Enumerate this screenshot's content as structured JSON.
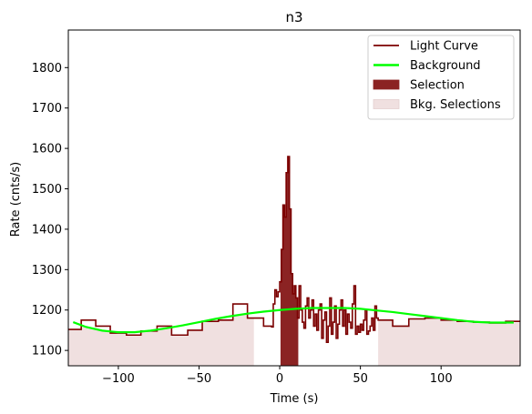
{
  "chart_data": {
    "type": "line",
    "title": "n3",
    "xlabel": "Time (s)",
    "ylabel": "Rate (cnts/s)",
    "xlim": [
      -131,
      149
    ],
    "ylim": [
      1062,
      1893
    ],
    "xticks": [
      -100,
      -50,
      0,
      50,
      100
    ],
    "xtick_labels": [
      "−100",
      "−50",
      "0",
      "50",
      "100"
    ],
    "yticks": [
      1100,
      1200,
      1300,
      1400,
      1500,
      1600,
      1700,
      1800
    ],
    "ytick_labels": [
      "1100",
      "1200",
      "1300",
      "1400",
      "1500",
      "1600",
      "1700",
      "1800"
    ],
    "grid": false,
    "legend_position": "top-right",
    "colors": {
      "light_curve": "#7b0000",
      "background": "#00ff00",
      "selection": "#8b2323",
      "bkg_selection": "#f0e0e0"
    },
    "legend": [
      {
        "label": "Light Curve",
        "kind": "line",
        "color": "#7b0000"
      },
      {
        "label": "Background",
        "kind": "line",
        "color": "#00ff00"
      },
      {
        "label": "Selection",
        "kind": "patch",
        "color": "#8b2323"
      },
      {
        "label": "Bkg. Selections",
        "kind": "patch",
        "color": "#f0e0e0"
      }
    ],
    "bkg_selections": [
      [
        -131,
        -16
      ],
      [
        61,
        149
      ]
    ],
    "selection": [
      0.5,
      11.5
    ],
    "background": {
      "x": [
        -128,
        -120,
        -110,
        -100,
        -90,
        -80,
        -70,
        -60,
        -50,
        -40,
        -30,
        -20,
        -10,
        0,
        10,
        20,
        30,
        40,
        50,
        60,
        70,
        80,
        90,
        100,
        110,
        120,
        130,
        145
      ],
      "y": [
        1170,
        1158,
        1149,
        1145,
        1145,
        1149,
        1155,
        1162,
        1170,
        1178,
        1185,
        1191,
        1196,
        1200,
        1203,
        1205,
        1205,
        1205,
        1203,
        1199,
        1195,
        1190,
        1185,
        1180,
        1175,
        1171,
        1169,
        1169
      ]
    },
    "light_curve": {
      "x": [
        -131,
        -123,
        -114,
        -105,
        -95,
        -86,
        -76,
        -67,
        -57,
        -48,
        -38,
        -29,
        -20,
        -10,
        -5,
        -4,
        -3,
        -2,
        -1,
        0,
        1,
        2,
        3,
        4,
        5,
        6,
        7,
        8,
        9,
        10,
        11,
        12,
        13,
        14,
        15,
        16,
        17,
        18,
        19,
        20,
        21,
        22,
        23,
        24,
        25,
        26,
        27,
        28,
        29,
        30,
        31,
        32,
        33,
        34,
        35,
        36,
        37,
        38,
        39,
        40,
        41,
        42,
        43,
        44,
        45,
        46,
        47,
        48,
        49,
        50,
        51,
        52,
        53,
        54,
        55,
        56,
        57,
        58,
        59,
        60,
        61,
        70,
        80,
        90,
        100,
        110,
        120,
        130,
        140
      ],
      "y": [
        1152,
        1175,
        1160,
        1143,
        1138,
        1148,
        1160,
        1138,
        1150,
        1172,
        1175,
        1215,
        1180,
        1160,
        1158,
        1215,
        1250,
        1233,
        1245,
        1270,
        1350,
        1460,
        1430,
        1540,
        1580,
        1450,
        1290,
        1240,
        1260,
        1230,
        1180,
        1260,
        1200,
        1170,
        1155,
        1210,
        1230,
        1180,
        1200,
        1225,
        1160,
        1190,
        1150,
        1200,
        1215,
        1130,
        1175,
        1195,
        1120,
        1160,
        1230,
        1140,
        1170,
        1210,
        1130,
        1165,
        1200,
        1225,
        1160,
        1200,
        1140,
        1190,
        1170,
        1155,
        1215,
        1260,
        1140,
        1160,
        1145,
        1165,
        1150,
        1175,
        1200,
        1140,
        1148,
        1160,
        1180,
        1150,
        1210,
        1180,
        1175,
        1160,
        1178,
        1180,
        1175,
        1172,
        1170,
        1168,
        1172
      ]
    }
  }
}
